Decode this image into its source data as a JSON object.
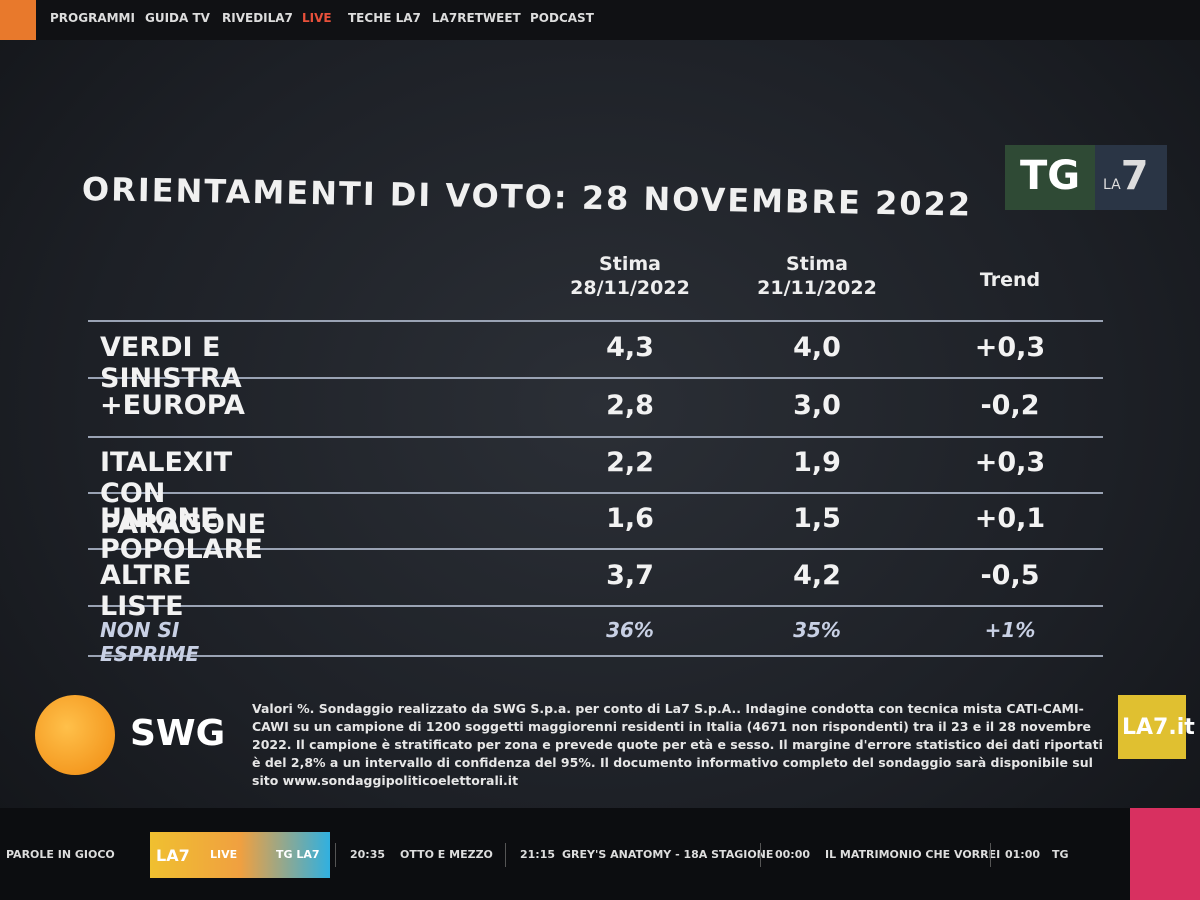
{
  "nav": {
    "items": [
      "PROGRAMMI",
      "GUIDA TV",
      "RIVEDILA7",
      "LIVE",
      "TECHE LA7",
      "LA7RETWEET",
      "PODCAST"
    ]
  },
  "header": {
    "title": "ORIENTAMENTI DI VOTO: 28 NOVEMBRE 2022",
    "logo_tg": "TG",
    "logo_la": "LA",
    "logo_7": "7"
  },
  "table": {
    "columns": [
      {
        "line1": "Stima",
        "line2": "28/11/2022"
      },
      {
        "line1": "Stima",
        "line2": "21/11/2022"
      },
      {
        "line1": "Trend"
      }
    ],
    "rows": [
      [
        "VERDI E SINISTRA",
        "4,3",
        "4,0",
        "+0,3"
      ],
      [
        "+EUROPA",
        "2,8",
        "3,0",
        "-0,2"
      ],
      [
        "ITALEXIT CON PARAGONE",
        "2,2",
        "1,9",
        "+0,3"
      ],
      [
        "UNIONE POPOLARE",
        "1,6",
        "1,5",
        "+0,1"
      ],
      [
        "ALTRE LISTE",
        "3,7",
        "4,2",
        "-0,5"
      ],
      [
        "NON SI ESPRIME",
        "36%",
        "35%",
        "+1%"
      ]
    ]
  },
  "footer": {
    "brand": "SWG",
    "note": "Valori %. Sondaggio realizzato da SWG S.p.a. per conto di La7 S.p.A.. Indagine condotta con tecnica mista CATI-CAMI-CAWI su un campione di 1200 soggetti maggiorenni residenti in Italia (4671 non rispondenti) tra il 23 e il 28 novembre 2022. Il campione è stratificato per zona e prevede quote per età e sesso. Il margine d'errore statistico dei dati riportati è del 2,8% a un intervallo di confidenza del 95%. Il documento informativo completo del sondaggio sarà disponibile sul sito www.sondaggipoliticoelettorali.it",
    "corner_logo": "LA7",
    "corner_suffix": ".it"
  },
  "schedule": {
    "current": "PAROLE IN GIOCO",
    "logo": "LA7",
    "live": "LIVE",
    "channel": "TG LA7",
    "items": [
      {
        "time": "20:35",
        "title": "OTTO E MEZZO"
      },
      {
        "time": "21:15",
        "title": "GREY'S ANATOMY - 18A STAGIONE"
      },
      {
        "time": "00:00",
        "title": "IL MATRIMONIO CHE VORREI"
      },
      {
        "time": "01:00",
        "title": "TG"
      }
    ]
  }
}
